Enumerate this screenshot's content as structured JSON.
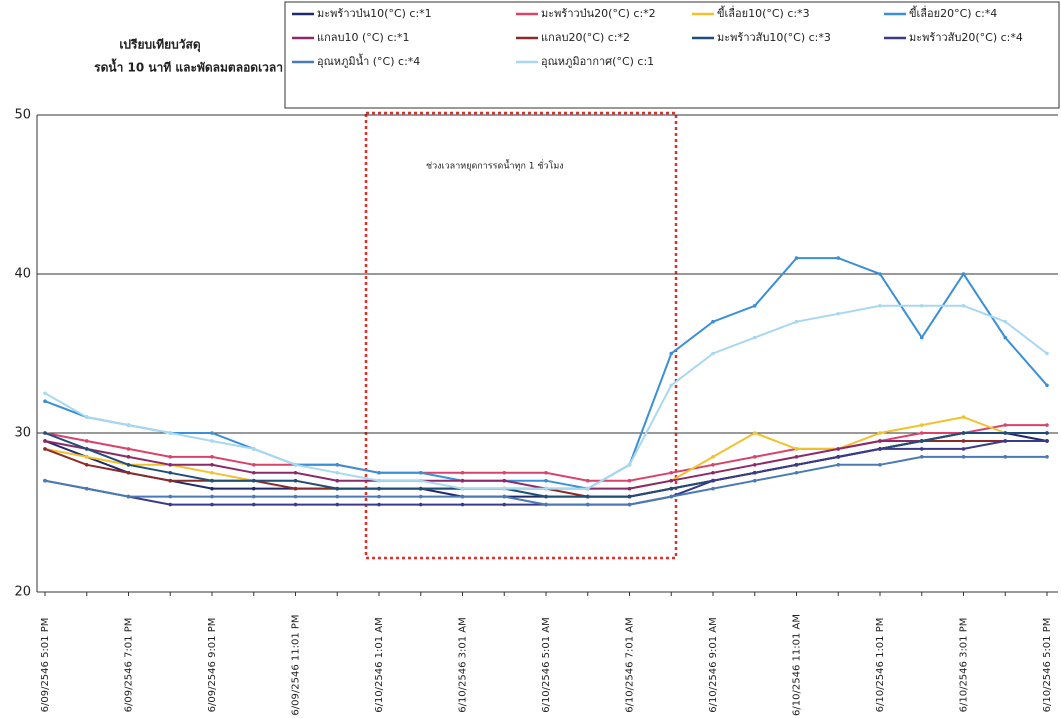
{
  "chart_data": {
    "type": "line",
    "title": "เปรียบเทียบวัสดุ",
    "subtitle": "รดน้ำ 10 นาที และพัดลมตลอดเวลา",
    "annotation": "ช่วงเวลาหยุดการรดน้ำทุก 1 ชั่วโมง",
    "categories": [
      "6/09/2546 5:01 PM",
      null,
      "6/09/2546 7:01 PM",
      null,
      "6/09/2546 9:01 PM",
      null,
      "6/09/2546 11:01 PM",
      null,
      "6/10/2546 1:01 AM",
      null,
      "6/10/2546 3:01 AM",
      null,
      "6/10/2546 5:01 AM",
      null,
      "6/10/2546 7:01 AM",
      null,
      "6/10/2546 9:01 AM",
      null,
      "6/10/2546 11:01 AM",
      null,
      "6/10/2546 1:01 PM",
      null,
      "6/10/2546 3:01 PM",
      null,
      "6/10/2546 5:01 PM"
    ],
    "ylim": [
      20,
      50
    ],
    "yticks": [
      20,
      30,
      40,
      50
    ],
    "grid": true,
    "series": [
      {
        "name": "มะพร้าวป่น10(°C) c:*1",
        "color": "#1f2a6b",
        "values": [
          29.5,
          28.5,
          27.5,
          27,
          26.5,
          26.5,
          26.5,
          26.5,
          26.5,
          26.5,
          26,
          26,
          26,
          26,
          26,
          26.5,
          27,
          27.5,
          28,
          28.5,
          29,
          29.5,
          30,
          30,
          29.5
        ]
      },
      {
        "name": "มะพร้าวป่น20(°C) c:*2",
        "color": "#d9426a",
        "values": [
          30,
          29.5,
          29,
          28.5,
          28.5,
          28,
          28,
          28,
          27.5,
          27.5,
          27.5,
          27.5,
          27.5,
          27,
          27,
          27.5,
          28,
          28.5,
          29,
          29,
          29.5,
          30,
          30,
          30.5,
          30.5
        ]
      },
      {
        "name": "ขี้เลื่อย10(°C) c:*3",
        "color": "#f2c12e",
        "values": [
          29,
          28.5,
          28,
          28,
          27.5,
          27,
          27,
          26.5,
          26.5,
          26.5,
          26.5,
          26.5,
          26.5,
          26.5,
          26.5,
          27,
          28.5,
          30,
          29,
          29,
          30,
          30.5,
          31,
          30,
          30
        ]
      },
      {
        "name": "ขี้เลื่อย20°C) c:*4",
        "color": "#3a8fd8",
        "values": [
          32,
          31,
          30.5,
          30,
          30,
          29,
          28,
          28,
          27.5,
          27.5,
          27,
          27,
          27,
          26.5,
          28,
          35,
          37,
          38,
          41,
          41,
          40,
          36,
          40,
          36,
          33
        ]
      },
      {
        "name": "แกลบ10 (°C) c:*1",
        "color": "#8b2a6a",
        "values": [
          29.5,
          29,
          28.5,
          28,
          28,
          27.5,
          27.5,
          27,
          27,
          27,
          27,
          27,
          26.5,
          26.5,
          26.5,
          27,
          27.5,
          28,
          28.5,
          29,
          29.5,
          29.5,
          30,
          30,
          30
        ]
      },
      {
        "name": "แกลบ20(°C) c:*2",
        "color": "#8b2a2a",
        "values": [
          29,
          28,
          27.5,
          27,
          27,
          27,
          26.5,
          26.5,
          26.5,
          26.5,
          26.5,
          26.5,
          26.5,
          26,
          26,
          26.5,
          27,
          27.5,
          28,
          28.5,
          29,
          29.5,
          29.5,
          29.5,
          29.5
        ]
      },
      {
        "name": "มะพร้าวสับ10(°C) c:*3",
        "color": "#1f4e79",
        "values": [
          30,
          29,
          28,
          27.5,
          27,
          27,
          27,
          26.5,
          26.5,
          26.5,
          26.5,
          26.5,
          26,
          26,
          26,
          26.5,
          27,
          27.5,
          28,
          28.5,
          29,
          29.5,
          30,
          30,
          30
        ]
      },
      {
        "name": "มะพร้าวสับ20(°C) c:*4",
        "color": "#3a3a8c",
        "values": [
          27,
          26.5,
          26,
          25.5,
          25.5,
          25.5,
          25.5,
          25.5,
          25.5,
          25.5,
          25.5,
          25.5,
          25.5,
          25.5,
          25.5,
          26,
          27,
          27.5,
          28,
          28.5,
          29,
          29,
          29,
          29.5,
          29.5
        ]
      },
      {
        "name": "อุณหภูมิน้ำ (°C) c:*4",
        "color": "#4a7ab5",
        "values": [
          27,
          26.5,
          26,
          26,
          26,
          26,
          26,
          26,
          26,
          26,
          26,
          26,
          25.5,
          25.5,
          25.5,
          26,
          26.5,
          27,
          27.5,
          28,
          28,
          28.5,
          28.5,
          28.5,
          28.5
        ]
      },
      {
        "name": "อุณหภูมิอากาศ(°C) c:1",
        "color": "#a8d8f0",
        "values": [
          32.5,
          31,
          30.5,
          30,
          29.5,
          29,
          28,
          27.5,
          27,
          27,
          26.5,
          26.5,
          26.5,
          26.5,
          28,
          33,
          35,
          36,
          37,
          37.5,
          38,
          38,
          38,
          37,
          35
        ]
      }
    ]
  }
}
